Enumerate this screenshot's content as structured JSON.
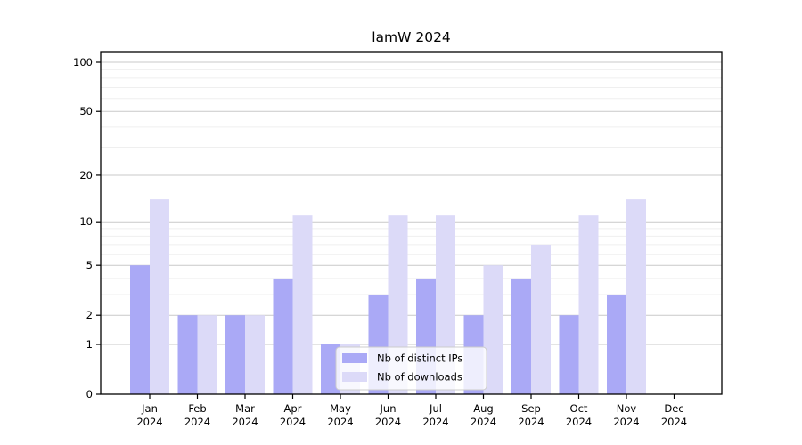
{
  "chart_data": {
    "type": "bar",
    "title": "lamW 2024",
    "categories": [
      "Jan",
      "Feb",
      "Mar",
      "Apr",
      "May",
      "Jun",
      "Jul",
      "Aug",
      "Sep",
      "Oct",
      "Nov",
      "Dec"
    ],
    "category_year": "2024",
    "series": [
      {
        "name": "Nb of distinct IPs",
        "color": "#aaa9f6",
        "values": [
          5,
          2,
          2,
          4,
          1,
          3,
          4,
          2,
          4,
          2,
          3,
          0
        ]
      },
      {
        "name": "Nb of downloads",
        "color": "#dcdaf8",
        "values": [
          14,
          2,
          2,
          11,
          1,
          11,
          11,
          5,
          7,
          11,
          14,
          0
        ]
      }
    ],
    "xlabel": "",
    "ylabel": "",
    "yscale": "log1p",
    "ylim": [
      0,
      116
    ],
    "yticks": [
      0,
      1,
      2,
      5,
      10,
      20,
      50,
      100
    ],
    "minor_gridlines": [
      3,
      4,
      6,
      7,
      8,
      9,
      30,
      40,
      60,
      70,
      80,
      90
    ],
    "grid": true,
    "legend_position": "lower center"
  },
  "colors": {
    "major_grid": "#c9c9c9",
    "minor_grid": "#efefef",
    "spine": "#000000",
    "text": "#000000",
    "legend_border": "#cccccc",
    "legend_bg": "rgba(255,255,255,0.8)"
  }
}
